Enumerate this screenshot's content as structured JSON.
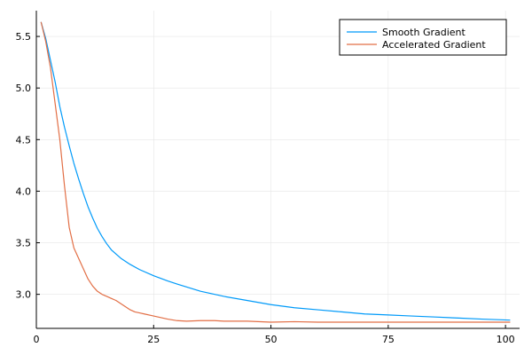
{
  "chart_data": {
    "type": "line",
    "title": "",
    "xlabel": "",
    "ylabel": "",
    "xlim": [
      0,
      103
    ],
    "ylim": [
      2.67,
      5.75
    ],
    "xticks": [
      0,
      25,
      50,
      75,
      100
    ],
    "yticks": [
      3.0,
      3.5,
      4.0,
      4.5,
      5.0,
      5.5
    ],
    "xtick_labels": [
      "0",
      "25",
      "50",
      "75",
      "100"
    ],
    "ytick_labels": [
      "3.0",
      "3.5",
      "4.0",
      "4.5",
      "5.0",
      "5.5"
    ],
    "grid": true,
    "legend_position": "top-right",
    "series": [
      {
        "name": "Smooth Gradient",
        "color": "#009af9",
        "x": [
          1,
          2,
          3,
          4,
          5,
          6,
          7,
          8,
          9,
          10,
          11,
          12,
          13,
          14,
          15,
          16,
          17,
          18,
          20,
          22,
          25,
          28,
          30,
          35,
          40,
          45,
          50,
          55,
          60,
          65,
          70,
          75,
          80,
          85,
          90,
          95,
          101
        ],
        "y": [
          5.64,
          5.48,
          5.27,
          5.06,
          4.82,
          4.62,
          4.44,
          4.27,
          4.12,
          3.98,
          3.85,
          3.74,
          3.64,
          3.56,
          3.49,
          3.43,
          3.39,
          3.35,
          3.29,
          3.24,
          3.18,
          3.13,
          3.1,
          3.03,
          2.98,
          2.94,
          2.9,
          2.87,
          2.85,
          2.83,
          2.81,
          2.8,
          2.79,
          2.78,
          2.77,
          2.76,
          2.75
        ]
      },
      {
        "name": "Accelerated Gradient",
        "color": "#e26f46",
        "x": [
          1,
          2,
          3,
          4,
          5,
          6,
          7,
          8,
          9,
          10,
          11,
          12,
          13,
          14,
          15,
          16,
          17,
          18,
          19,
          20,
          21,
          22,
          23,
          25,
          28,
          30,
          32,
          35,
          38,
          40,
          45,
          50,
          55,
          60,
          65,
          70,
          80,
          90,
          101
        ],
        "y": [
          5.64,
          5.45,
          5.2,
          4.85,
          4.5,
          4.05,
          3.65,
          3.45,
          3.35,
          3.25,
          3.15,
          3.08,
          3.03,
          3.0,
          2.98,
          2.96,
          2.94,
          2.91,
          2.88,
          2.85,
          2.83,
          2.82,
          2.81,
          2.79,
          2.76,
          2.745,
          2.74,
          2.745,
          2.745,
          2.74,
          2.74,
          2.73,
          2.735,
          2.73,
          2.73,
          2.73,
          2.73,
          2.73,
          2.73
        ]
      }
    ]
  }
}
